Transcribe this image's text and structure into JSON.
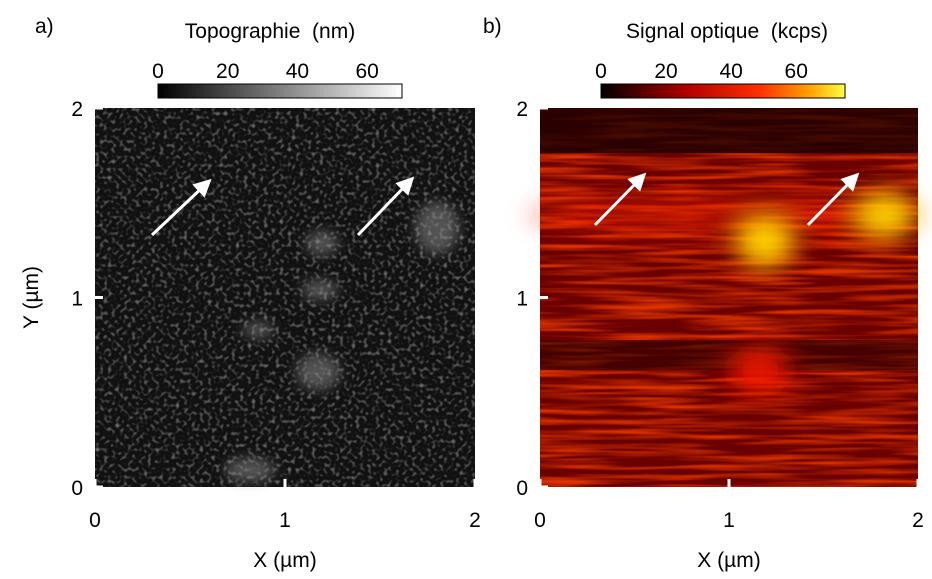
{
  "panels": [
    {
      "label": "a)",
      "colorbar": {
        "title": "Topographie  (nm)",
        "lim": [
          0,
          70
        ],
        "ticks": [
          0,
          20,
          40,
          60
        ]
      },
      "xlabel": "X (µm)",
      "ylabel": "Y (µm)",
      "xlim": [
        0,
        2
      ],
      "ylim": [
        0,
        2
      ],
      "xticks": [
        0,
        1,
        2
      ],
      "yticks": [
        0,
        1,
        2
      ]
    },
    {
      "label": "b)",
      "colorbar": {
        "title": "Signal optique  (kcps)",
        "lim": [
          0,
          75
        ],
        "ticks": [
          0,
          20,
          40,
          60
        ]
      },
      "xlabel": "X (µm)",
      "xlim": [
        0,
        2
      ],
      "ylim": [
        0,
        2
      ],
      "xticks": [
        0,
        1,
        2
      ],
      "yticks": [
        0,
        1,
        2
      ]
    }
  ]
}
